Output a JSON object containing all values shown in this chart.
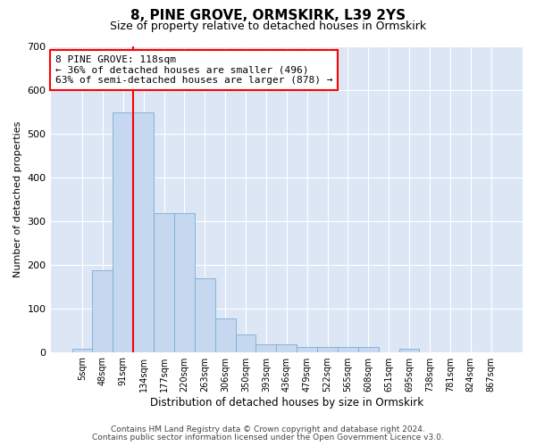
{
  "title": "8, PINE GROVE, ORMSKIRK, L39 2YS",
  "subtitle": "Size of property relative to detached houses in Ormskirk",
  "xlabel": "Distribution of detached houses by size in Ormskirk",
  "ylabel": "Number of detached properties",
  "bin_labels": [
    "5sqm",
    "48sqm",
    "91sqm",
    "134sqm",
    "177sqm",
    "220sqm",
    "263sqm",
    "306sqm",
    "350sqm",
    "393sqm",
    "436sqm",
    "479sqm",
    "522sqm",
    "565sqm",
    "608sqm",
    "651sqm",
    "695sqm",
    "738sqm",
    "781sqm",
    "824sqm",
    "867sqm"
  ],
  "bar_values": [
    8,
    186,
    547,
    547,
    317,
    317,
    168,
    76,
    40,
    17,
    17,
    12,
    12,
    11,
    11,
    0,
    7,
    0,
    0,
    0,
    0
  ],
  "bar_color": "#c5d8f0",
  "bar_edge_color": "#7aadd4",
  "vline_x": 2.5,
  "vline_color": "red",
  "ylim": [
    0,
    700
  ],
  "yticks": [
    0,
    100,
    200,
    300,
    400,
    500,
    600,
    700
  ],
  "annotation_text": "8 PINE GROVE: 118sqm\n← 36% of detached houses are smaller (496)\n63% of semi-detached houses are larger (878) →",
  "annotation_box_color": "white",
  "annotation_box_edge_color": "red",
  "footer_line1": "Contains HM Land Registry data © Crown copyright and database right 2024.",
  "footer_line2": "Contains public sector information licensed under the Open Government Licence v3.0.",
  "plot_bg_color": "#dce6f5"
}
